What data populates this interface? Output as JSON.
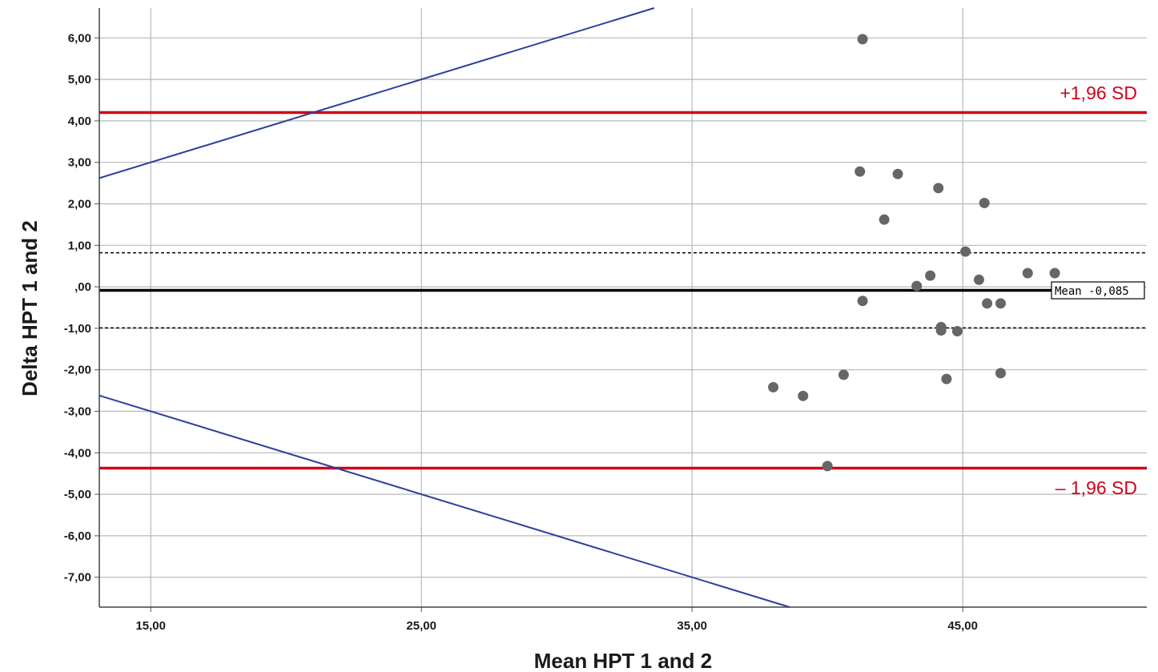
{
  "chart_data": {
    "type": "scatter",
    "xlabel": "Mean HPT 1 and 2",
    "ylabel": "Delta HPT 1 and 2",
    "xlim": [
      13.1,
      51.8
    ],
    "ylim": [
      -7.72,
      6.72
    ],
    "x_ticks": [
      15,
      25,
      35,
      45
    ],
    "x_tick_labels": [
      "15,00",
      "25,00",
      "35,00",
      "45,00"
    ],
    "y_ticks": [
      6,
      5,
      4,
      3,
      2,
      1,
      0,
      -1,
      -2,
      -3,
      -4,
      -5,
      -6,
      -7
    ],
    "y_tick_labels": [
      "6,00",
      "5,00",
      "4,00",
      "3,00",
      "2,00",
      "1,00",
      ",00",
      "-1,00",
      "-2,00",
      "-3,00",
      "-4,00",
      "-5,00",
      "-6,00",
      "-7,00"
    ],
    "grid": true,
    "points": [
      {
        "x": 41.3,
        "y": 5.97
      },
      {
        "x": 41.2,
        "y": 2.78
      },
      {
        "x": 42.6,
        "y": 2.72
      },
      {
        "x": 44.1,
        "y": 2.38
      },
      {
        "x": 45.8,
        "y": 2.02
      },
      {
        "x": 42.1,
        "y": 1.62
      },
      {
        "x": 45.1,
        "y": 0.85
      },
      {
        "x": 47.4,
        "y": 0.33
      },
      {
        "x": 48.4,
        "y": 0.33
      },
      {
        "x": 43.8,
        "y": 0.27
      },
      {
        "x": 45.6,
        "y": 0.17
      },
      {
        "x": 43.3,
        "y": 0.02
      },
      {
        "x": 41.3,
        "y": -0.34
      },
      {
        "x": 45.9,
        "y": -0.4
      },
      {
        "x": 46.4,
        "y": -0.4
      },
      {
        "x": 44.2,
        "y": -0.97
      },
      {
        "x": 44.2,
        "y": -1.05
      },
      {
        "x": 44.8,
        "y": -1.07
      },
      {
        "x": 40.6,
        "y": -2.12
      },
      {
        "x": 46.4,
        "y": -2.08
      },
      {
        "x": 44.4,
        "y": -2.22
      },
      {
        "x": 38.0,
        "y": -2.42
      },
      {
        "x": 39.1,
        "y": -2.63
      },
      {
        "x": 40.0,
        "y": -4.32
      }
    ],
    "reference_lines": {
      "mean": {
        "value": -0.085,
        "label": "Mean -0,085",
        "color": "#000000"
      },
      "upper_loa": {
        "value": 4.2,
        "label": "+1,96 SD",
        "color": "#d0021b"
      },
      "lower_loa": {
        "value": -4.37,
        "label": "– 1,96 SD",
        "color": "#d0021b"
      },
      "ci_upper": {
        "value": 0.82,
        "style": "dashed"
      },
      "ci_lower": {
        "value": -0.99,
        "style": "dashed"
      }
    },
    "trend_lines": [
      {
        "color": "#2b3f9e",
        "from": [
          13.1,
          2.62
        ],
        "to": [
          33.6,
          6.72
        ]
      },
      {
        "color": "#2b3f9e",
        "from": [
          13.1,
          -2.62
        ],
        "to": [
          38.6,
          -7.72
        ]
      }
    ],
    "point_color": "#666666"
  }
}
